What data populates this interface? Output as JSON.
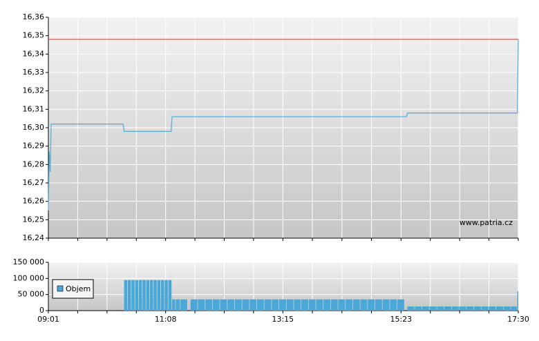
{
  "chart_data": [
    {
      "type": "line",
      "watermark": "www.patria.cz",
      "xlim": [
        "09:01",
        "17:30"
      ],
      "ylim": [
        16.24,
        16.36
      ],
      "yticks": [
        {
          "value": 16.24,
          "label": "16,24"
        },
        {
          "value": 16.25,
          "label": "16,25"
        },
        {
          "value": 16.26,
          "label": "16,26"
        },
        {
          "value": 16.27,
          "label": "16,27"
        },
        {
          "value": 16.28,
          "label": "16,28"
        },
        {
          "value": 16.29,
          "label": "16,29"
        },
        {
          "value": 16.3,
          "label": "16,30"
        },
        {
          "value": 16.31,
          "label": "16,31"
        },
        {
          "value": 16.32,
          "label": "16,32"
        },
        {
          "value": 16.33,
          "label": "16,33"
        },
        {
          "value": 16.34,
          "label": "16,34"
        },
        {
          "value": 16.35,
          "label": "16,35"
        },
        {
          "value": 16.36,
          "label": "16,36"
        }
      ],
      "grid": true,
      "reference_line": {
        "value": 16.348,
        "color": "#cc3333"
      },
      "x": [
        "09:01",
        "09:02",
        "09:03",
        "09:04",
        "10:22",
        "10:23",
        "11:14",
        "11:15",
        "15:29",
        "15:30",
        "17:29",
        "17:30"
      ],
      "series": [
        {
          "color": "#5aaedc",
          "values": [
            16.255,
            16.287,
            16.276,
            16.302,
            16.302,
            16.298,
            16.298,
            16.306,
            16.306,
            16.308,
            16.308,
            16.348
          ]
        }
      ]
    },
    {
      "type": "bar",
      "xlim": [
        "09:01",
        "17:30"
      ],
      "xticks": [
        "09:01",
        "11:08",
        "13:15",
        "15:23",
        "17:30"
      ],
      "ylim": [
        0,
        150000
      ],
      "yticks": [
        {
          "value": 0,
          "label": "0"
        },
        {
          "value": 50000,
          "label": "50 000"
        },
        {
          "value": 100000,
          "label": "100 000"
        },
        {
          "value": 150000,
          "label": "150 000"
        }
      ],
      "grid": true,
      "legend": "top-left",
      "x": [
        "10:23",
        "10:27",
        "10:31",
        "10:35",
        "10:39",
        "10:43",
        "10:47",
        "10:51",
        "10:55",
        "10:59",
        "11:03",
        "11:07",
        "11:11",
        "11:15",
        "11:19",
        "11:24",
        "11:35",
        "11:43",
        "11:51",
        "11:59",
        "12:07",
        "12:15",
        "12:23",
        "12:31",
        "12:39",
        "12:47",
        "12:55",
        "13:03",
        "13:11",
        "13:19",
        "13:27",
        "13:35",
        "13:43",
        "13:51",
        "13:59",
        "14:07",
        "14:15",
        "14:23",
        "14:31",
        "14:39",
        "14:47",
        "14:55",
        "15:03",
        "15:11",
        "15:19",
        "15:30",
        "15:38",
        "15:46",
        "15:54",
        "16:02",
        "16:10",
        "16:18",
        "16:26",
        "16:34",
        "16:42",
        "16:50",
        "16:58",
        "17:06",
        "17:14",
        "17:22",
        "17:29"
      ],
      "series": [
        {
          "name": "Objem",
          "color": "#4aa8d8",
          "values": [
            95000,
            95000,
            95000,
            95000,
            95000,
            95000,
            95000,
            95000,
            95000,
            95000,
            95000,
            95000,
            95000,
            35000,
            35000,
            35000,
            35000,
            35000,
            35000,
            35000,
            35000,
            35000,
            35000,
            35000,
            35000,
            35000,
            35000,
            35000,
            35000,
            35000,
            35000,
            35000,
            35000,
            35000,
            35000,
            35000,
            35000,
            35000,
            35000,
            35000,
            35000,
            35000,
            35000,
            35000,
            35000,
            13000,
            13000,
            13000,
            13000,
            13000,
            13000,
            13000,
            13000,
            13000,
            13000,
            13000,
            13000,
            13000,
            13000,
            13000,
            60000
          ]
        }
      ]
    }
  ]
}
